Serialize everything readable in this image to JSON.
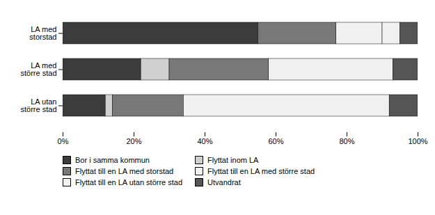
{
  "chart_data": {
    "type": "bar",
    "orientation": "horizontal",
    "stacked": true,
    "categories": [
      "LA med\nstorstad",
      "LA med\nstörre stad",
      "LA utan\nstörre stad"
    ],
    "series": [
      {
        "name": "Bor i samma kommun",
        "color": "#3c3c3c",
        "values": [
          55,
          22,
          12
        ]
      },
      {
        "name": "Flyttat inom LA",
        "color": "#d0d0d0",
        "values": [
          0,
          8,
          2
        ]
      },
      {
        "name": "Flyttat till en LA med storstad",
        "color": "#787878",
        "values": [
          22,
          28,
          20
        ]
      },
      {
        "name": "Flyttat till en LA med större stad",
        "color": "#f0f0f0",
        "values": [
          13,
          0,
          0
        ]
      },
      {
        "name": "Flyttat till en LA utan större stad",
        "color": "#f0f0f0",
        "values": [
          5,
          35,
          58
        ]
      },
      {
        "name": "Utvandrat",
        "color": "#555555",
        "values": [
          5,
          7,
          8
        ]
      }
    ],
    "xlim": [
      0,
      100
    ],
    "xticks": [
      {
        "value": 0,
        "label": "0%"
      },
      {
        "value": 20,
        "label": "20%"
      },
      {
        "value": 40,
        "label": "40%"
      },
      {
        "value": 60,
        "label": "60%"
      },
      {
        "value": 80,
        "label": "80%"
      },
      {
        "value": 100,
        "label": "100%"
      }
    ],
    "grid": false,
    "legend": "bottom"
  }
}
